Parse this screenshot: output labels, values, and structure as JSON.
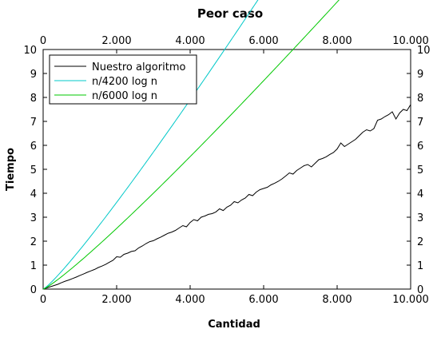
{
  "chart_data": {
    "type": "line",
    "title": "Peor caso",
    "xlabel": "Cantidad",
    "ylabel": "Tiempo",
    "xlim": [
      0,
      10000
    ],
    "ylim": [
      0,
      10
    ],
    "x_ticks": [
      0,
      2000,
      4000,
      6000,
      8000,
      10000
    ],
    "x_tick_labels": [
      "0",
      "2.000",
      "4.000",
      "6.000",
      "8.000",
      "10.000"
    ],
    "y_ticks": [
      0,
      1,
      2,
      3,
      4,
      5,
      6,
      7,
      8,
      9,
      10
    ],
    "y_tick_labels": [
      "0",
      "1",
      "2",
      "3",
      "4",
      "5",
      "6",
      "7",
      "8",
      "9",
      "10"
    ],
    "grid": false,
    "legend_position": "top-left",
    "series": [
      {
        "name": "Nuestro algoritmo",
        "color": "#000000",
        "x": [
          0,
          100,
          200,
          300,
          400,
          500,
          600,
          700,
          800,
          900,
          1000,
          1100,
          1200,
          1300,
          1400,
          1500,
          1600,
          1700,
          1800,
          1900,
          2000,
          2100,
          2200,
          2300,
          2400,
          2500,
          2600,
          2700,
          2800,
          2900,
          3000,
          3100,
          3200,
          3300,
          3400,
          3500,
          3600,
          3700,
          3800,
          3900,
          4000,
          4100,
          4200,
          4300,
          4400,
          4500,
          4600,
          4700,
          4800,
          4900,
          5000,
          5100,
          5200,
          5300,
          5400,
          5500,
          5600,
          5700,
          5800,
          5900,
          6000,
          6100,
          6200,
          6300,
          6400,
          6500,
          6600,
          6700,
          6800,
          6900,
          7000,
          7100,
          7200,
          7300,
          7400,
          7500,
          7600,
          7700,
          7800,
          7900,
          8000,
          8100,
          8200,
          8300,
          8400,
          8500,
          8600,
          8700,
          8800,
          8900,
          9000,
          9100,
          9200,
          9300,
          9400,
          9500,
          9600,
          9700,
          9800,
          9900,
          10000
        ],
        "y": [
          0,
          0.05,
          0.1,
          0.15,
          0.2,
          0.27,
          0.33,
          0.38,
          0.44,
          0.5,
          0.57,
          0.63,
          0.7,
          0.76,
          0.82,
          0.9,
          0.96,
          1.03,
          1.12,
          1.2,
          1.35,
          1.33,
          1.45,
          1.5,
          1.57,
          1.6,
          1.72,
          1.8,
          1.9,
          1.98,
          2.02,
          2.1,
          2.17,
          2.25,
          2.33,
          2.38,
          2.45,
          2.55,
          2.65,
          2.6,
          2.78,
          2.9,
          2.85,
          3.0,
          3.05,
          3.12,
          3.15,
          3.22,
          3.35,
          3.28,
          3.42,
          3.5,
          3.65,
          3.6,
          3.72,
          3.8,
          3.95,
          3.9,
          4.05,
          4.15,
          4.2,
          4.25,
          4.35,
          4.42,
          4.5,
          4.6,
          4.72,
          4.85,
          4.8,
          4.95,
          5.05,
          5.15,
          5.2,
          5.1,
          5.25,
          5.4,
          5.45,
          5.52,
          5.62,
          5.7,
          5.85,
          6.1,
          5.95,
          6.05,
          6.15,
          6.25,
          6.4,
          6.55,
          6.65,
          6.6,
          6.7,
          7.05,
          7.1,
          7.2,
          7.28,
          7.4,
          7.1,
          7.35,
          7.5,
          7.45,
          7.7
        ]
      },
      {
        "name": "n/4200 log n",
        "color": "#00c8c8",
        "formula_coeff": 4200
      },
      {
        "name": "n/6000 log n",
        "color": "#00c800",
        "formula_coeff": 6000
      }
    ]
  }
}
